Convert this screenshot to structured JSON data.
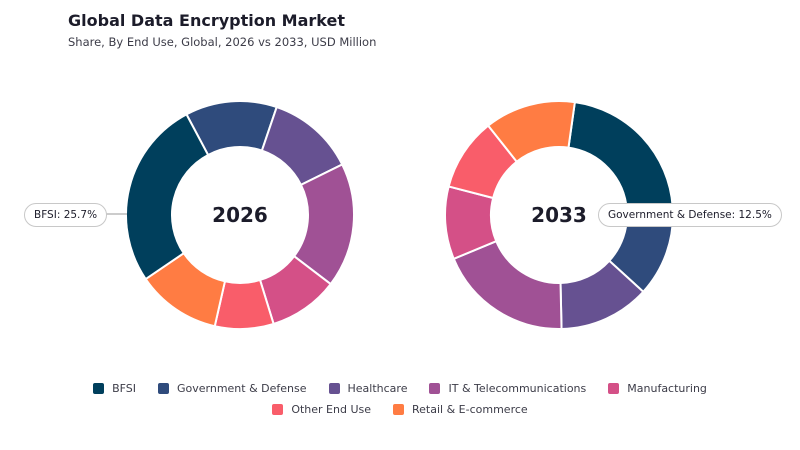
{
  "title": "Global Data Encryption Market",
  "subtitle": "Share, By End Use, Global, 2026 vs 2033, USD Million",
  "chart_data": {
    "type": "pie",
    "categories": [
      "BFSI",
      "Government & Defense",
      "Healthcare",
      "IT & Telecommunications",
      "Manufacturing",
      "Other End Use",
      "Retail & E-commerce"
    ],
    "colors": [
      "#003f5c",
      "#2f4b7c",
      "#665191",
      "#a05195",
      "#d45087",
      "#f95d6a",
      "#ff7c43"
    ],
    "series": [
      {
        "name": "2026",
        "values": [
          25.7,
          12.5,
          12.0,
          17.0,
          9.5,
          8.0,
          11.5
        ]
      },
      {
        "name": "2033",
        "values": [
          21.0,
          12.5,
          12.5,
          18.5,
          10.0,
          10.0,
          12.5
        ]
      }
    ],
    "callouts": [
      "BFSI: 25.7%",
      "Government & Defense: 12.5%"
    ],
    "legend_position": "bottom"
  }
}
